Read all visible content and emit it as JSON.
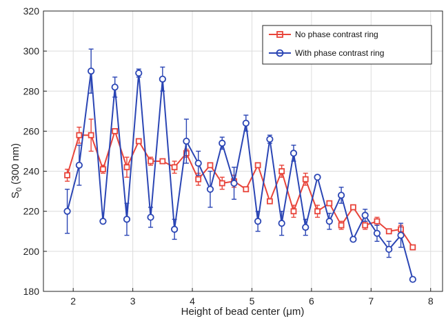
{
  "chart_data": {
    "type": "line",
    "xlabel": "Height of bead center (μm)",
    "ylabel_main": "S",
    "ylabel_sub": "0",
    "ylabel_rest": " (300 nm)",
    "xlim": [
      1.5,
      8.2
    ],
    "ylim": [
      180,
      320
    ],
    "x_ticks": [
      2,
      3,
      4,
      5,
      6,
      7,
      8
    ],
    "y_ticks": [
      180,
      200,
      220,
      240,
      260,
      280,
      300,
      320
    ],
    "grid": true,
    "legend_position": "top-right",
    "series": [
      {
        "name": "No phase contrast ring",
        "color": "#e8443a",
        "marker": "square",
        "x": [
          1.9,
          2.1,
          2.3,
          2.5,
          2.7,
          2.9,
          3.1,
          3.3,
          3.5,
          3.7,
          3.9,
          4.1,
          4.3,
          4.5,
          4.7,
          4.9,
          5.1,
          5.3,
          5.5,
          5.7,
          5.9,
          6.1,
          6.3,
          6.5,
          6.7,
          6.9,
          7.1,
          7.3,
          7.5,
          7.7
        ],
        "y": [
          238,
          258,
          258,
          241,
          260,
          242,
          255,
          245,
          245,
          242,
          249,
          236,
          243,
          234,
          235,
          231,
          243,
          225,
          240,
          220,
          236,
          220,
          224,
          213,
          222,
          213,
          215,
          210,
          211,
          202
        ],
        "err": [
          3,
          4,
          8,
          2,
          1,
          5,
          1,
          2,
          1,
          3,
          2,
          3,
          1,
          3,
          3,
          1,
          1,
          1,
          3,
          3,
          3,
          3,
          1,
          2,
          1,
          2,
          2,
          1,
          2,
          1
        ]
      },
      {
        "name": "With phase contrast ring",
        "color": "#2a45b4",
        "marker": "circle",
        "x": [
          1.9,
          2.1,
          2.3,
          2.5,
          2.7,
          2.9,
          3.1,
          3.3,
          3.5,
          3.7,
          3.9,
          4.1,
          4.3,
          4.5,
          4.7,
          4.9,
          5.1,
          5.3,
          5.5,
          5.7,
          5.9,
          6.1,
          6.3,
          6.5,
          6.7,
          6.9,
          7.1,
          7.3,
          7.5,
          7.7
        ],
        "y": [
          220,
          243,
          290,
          215,
          282,
          216,
          289,
          217,
          286,
          211,
          255,
          244,
          231,
          254,
          234,
          264,
          215,
          256,
          214,
          249,
          212,
          237,
          215,
          228,
          206,
          218,
          209,
          201,
          208,
          186
        ],
        "err": [
          11,
          10,
          11,
          1,
          5,
          8,
          2,
          5,
          6,
          5,
          11,
          6,
          9,
          3,
          8,
          4,
          5,
          2,
          6,
          4,
          4,
          1,
          4,
          4,
          1,
          3,
          4,
          4,
          6,
          1
        ]
      }
    ]
  }
}
